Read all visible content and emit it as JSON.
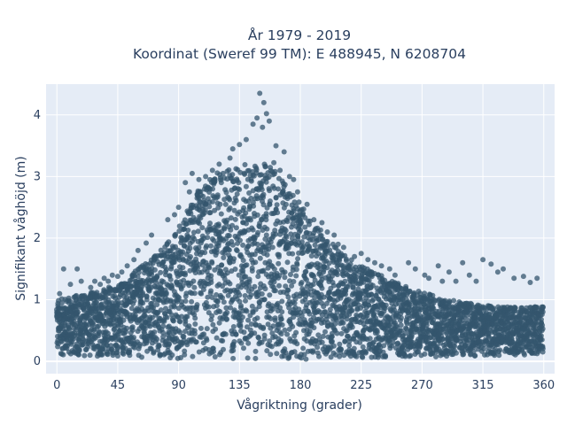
{
  "chart_data": {
    "type": "scatter",
    "title_line1": "År 1979 - 2019",
    "title_line2": "Koordinat (Sweref 99 TM): E 488945, N 6208704",
    "xlabel": "Vågriktning (grader)",
    "ylabel": "Signifikant våghöjd (m)",
    "xlim": [
      -8,
      368
    ],
    "ylim": [
      -0.2,
      4.5
    ],
    "xticks": [
      0,
      45,
      90,
      135,
      180,
      225,
      270,
      315,
      360
    ],
    "yticks": [
      0,
      1,
      2,
      3,
      4
    ],
    "grid": true,
    "marker_color": "#34566e",
    "plot_background": "#e5ecf6",
    "envelope": {
      "direction_deg": [
        0,
        10,
        20,
        30,
        45,
        55,
        65,
        75,
        85,
        95,
        105,
        115,
        125,
        135,
        145,
        150,
        155,
        160,
        165,
        175,
        185,
        200,
        215,
        230,
        245,
        260,
        275,
        290,
        305,
        320,
        335,
        350,
        360
      ],
      "dense_max_height_m": [
        1.0,
        1.05,
        1.1,
        1.15,
        1.25,
        1.4,
        1.6,
        1.8,
        2.0,
        2.4,
        2.8,
        3.0,
        3.15,
        3.2,
        3.2,
        3.1,
        3.25,
        3.3,
        3.0,
        2.7,
        2.4,
        2.0,
        1.7,
        1.5,
        1.35,
        1.2,
        1.1,
        1.0,
        0.95,
        0.9,
        0.88,
        0.88,
        0.9
      ],
      "dense_min_height_m": [
        0.1,
        0.08,
        0.08,
        0.08,
        0.08,
        0.06,
        0.05,
        0.05,
        0.05,
        0.04,
        0.03,
        0.03,
        0.03,
        0.03,
        0.03,
        0.03,
        0.03,
        0.03,
        0.03,
        0.03,
        0.03,
        0.04,
        0.05,
        0.05,
        0.06,
        0.06,
        0.07,
        0.08,
        0.08,
        0.09,
        0.1,
        0.1,
        0.12
      ]
    },
    "points": [
      [
        150,
        4.35
      ],
      [
        153,
        4.2
      ],
      [
        155,
        4.02
      ],
      [
        148,
        3.95
      ],
      [
        157,
        3.9
      ],
      [
        145,
        3.85
      ],
      [
        152,
        3.8
      ],
      [
        140,
        3.6
      ],
      [
        135,
        3.52
      ],
      [
        162,
        3.5
      ],
      [
        168,
        3.4
      ],
      [
        130,
        3.45
      ],
      [
        128,
        3.3
      ],
      [
        120,
        3.2
      ],
      [
        115,
        3.1
      ],
      [
        100,
        3.05
      ],
      [
        95,
        2.9
      ],
      [
        98,
        2.75
      ],
      [
        165,
        3.1
      ],
      [
        175,
        2.95
      ],
      [
        178,
        2.75
      ],
      [
        185,
        2.55
      ],
      [
        90,
        2.5
      ],
      [
        87,
        2.38
      ],
      [
        82,
        2.3
      ],
      [
        196,
        2.25
      ],
      [
        190,
        2.3
      ],
      [
        205,
        2.05
      ],
      [
        208,
        1.9
      ],
      [
        212,
        1.85
      ],
      [
        70,
        2.05
      ],
      [
        66,
        1.92
      ],
      [
        60,
        1.8
      ],
      [
        57,
        1.65
      ],
      [
        52,
        1.55
      ],
      [
        48,
        1.45
      ],
      [
        41,
        1.4
      ],
      [
        38,
        1.3
      ],
      [
        32,
        1.25
      ],
      [
        25,
        1.2
      ],
      [
        15,
        1.5
      ],
      [
        5,
        1.5
      ],
      [
        18,
        1.3
      ],
      [
        225,
        1.75
      ],
      [
        230,
        1.65
      ],
      [
        240,
        1.55
      ],
      [
        246,
        1.5
      ],
      [
        260,
        1.6
      ],
      [
        265,
        1.5
      ],
      [
        272,
        1.4
      ],
      [
        282,
        1.55
      ],
      [
        290,
        1.45
      ],
      [
        300,
        1.6
      ],
      [
        305,
        1.4
      ],
      [
        315,
        1.65
      ],
      [
        321,
        1.58
      ],
      [
        326,
        1.45
      ],
      [
        330,
        1.5
      ],
      [
        338,
        1.35
      ],
      [
        345,
        1.38
      ],
      [
        355,
        1.35
      ],
      [
        350,
        1.28
      ],
      [
        310,
        1.3
      ],
      [
        295,
        1.3
      ],
      [
        285,
        1.3
      ],
      [
        275,
        1.35
      ],
      [
        250,
        1.4
      ],
      [
        235,
        1.6
      ],
      [
        220,
        1.7
      ],
      [
        200,
        2.1
      ],
      [
        172,
        3.0
      ],
      [
        110,
        3.0
      ],
      [
        105,
        2.95
      ],
      [
        2,
        1.1
      ],
      [
        10,
        1.25
      ],
      [
        28,
        1.3
      ],
      [
        35,
        1.35
      ],
      [
        45,
        1.38
      ]
    ]
  }
}
